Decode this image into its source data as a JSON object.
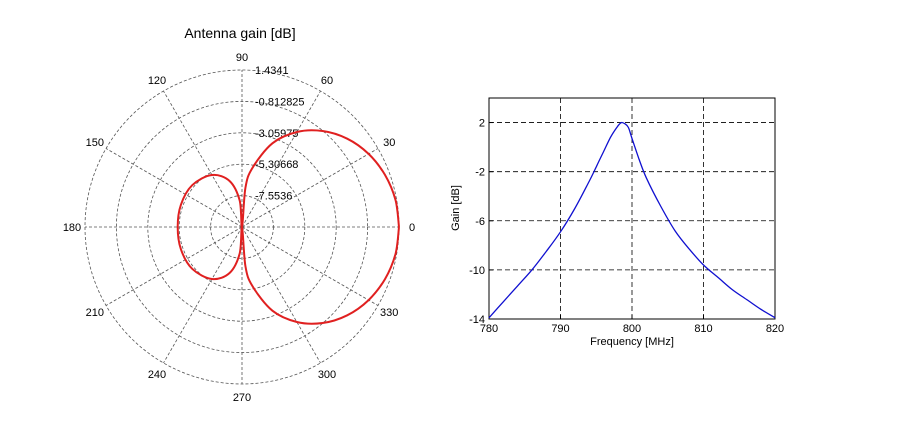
{
  "chart_data": [
    {
      "type": "polar",
      "title": "Antenna gain [dB]",
      "angle_unit": "degrees",
      "angle_ticks": [
        "0",
        "30",
        "60",
        "90",
        "120",
        "150",
        "180",
        "210",
        "240",
        "270",
        "300",
        "330"
      ],
      "radial_ticks": [
        "-7.5536",
        "-5.30668",
        "-3.05975",
        "-0.812825",
        "1.4341"
      ],
      "rlim": [
        -9.80053,
        1.4341
      ],
      "grid": true,
      "series": [
        {
          "color": "#e02020",
          "points": [
            {
              "angle": 0,
              "gain": 1.4341
            },
            {
              "angle": 10,
              "gain": 1.35
            },
            {
              "angle": 20,
              "gain": 1.09
            },
            {
              "angle": 30,
              "gain": 0.66
            },
            {
              "angle": 40,
              "gain": 0.03
            },
            {
              "angle": 50,
              "gain": -0.83
            },
            {
              "angle": 60,
              "gain": -1.95
            },
            {
              "angle": 70,
              "gain": -3.43
            },
            {
              "angle": 80,
              "gain": -5.51
            },
            {
              "angle": 85,
              "gain": -7.0
            },
            {
              "angle": 90,
              "gain": -9.8
            },
            {
              "angle": 95,
              "gain": -7.9
            },
            {
              "angle": 105,
              "gain": -6.4
            },
            {
              "angle": 120,
              "gain": -5.5
            },
            {
              "angle": 140,
              "gain": -5.15
            },
            {
              "angle": 160,
              "gain": -5.15
            },
            {
              "angle": 180,
              "gain": -5.2
            },
            {
              "angle": 200,
              "gain": -5.15
            },
            {
              "angle": 220,
              "gain": -5.15
            },
            {
              "angle": 240,
              "gain": -5.5
            },
            {
              "angle": 255,
              "gain": -6.4
            },
            {
              "angle": 265,
              "gain": -7.9
            },
            {
              "angle": 270,
              "gain": -9.8
            },
            {
              "angle": 275,
              "gain": -7.0
            },
            {
              "angle": 280,
              "gain": -5.51
            },
            {
              "angle": 290,
              "gain": -3.43
            },
            {
              "angle": 300,
              "gain": -1.95
            },
            {
              "angle": 310,
              "gain": -0.83
            },
            {
              "angle": 320,
              "gain": 0.03
            },
            {
              "angle": 330,
              "gain": 0.66
            },
            {
              "angle": 340,
              "gain": 1.09
            },
            {
              "angle": 350,
              "gain": 1.35
            },
            {
              "angle": 360,
              "gain": 1.4341
            }
          ]
        }
      ]
    },
    {
      "type": "line",
      "title": "",
      "xlabel": "Frequency [MHz]",
      "ylabel": "Gain [dB]",
      "xlim": [
        780,
        820
      ],
      "ylim": [
        -14,
        4
      ],
      "xticks": [
        780,
        790,
        800,
        810,
        820
      ],
      "yticks": [
        -14,
        -10,
        -6,
        -2,
        2
      ],
      "grid": true,
      "series": [
        {
          "color": "#1010d0",
          "x": [
            780,
            782,
            784,
            786,
            788,
            790,
            792,
            794,
            795,
            796,
            797,
            798,
            798.5,
            799,
            799.5,
            800,
            801,
            802,
            804,
            806,
            808,
            810,
            812,
            814,
            816,
            818,
            820
          ],
          "y": [
            -13.9,
            -12.6,
            -11.3,
            -10.0,
            -8.5,
            -6.9,
            -5.0,
            -2.8,
            -1.6,
            -0.4,
            0.8,
            1.7,
            2.0,
            1.9,
            1.6,
            0.7,
            -1.0,
            -2.5,
            -4.8,
            -6.8,
            -8.3,
            -9.6,
            -10.6,
            -11.6,
            -12.4,
            -13.2,
            -13.9
          ]
        }
      ]
    }
  ]
}
